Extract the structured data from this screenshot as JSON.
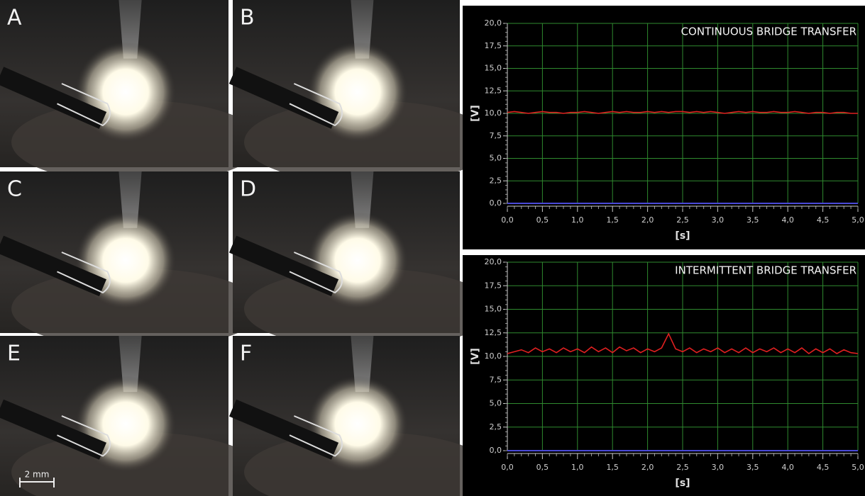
{
  "panels": {
    "labels": [
      "A",
      "B",
      "C",
      "D",
      "E",
      "F"
    ],
    "scale_bar": "2 mm"
  },
  "chart_data": [
    {
      "type": "line",
      "annotation": "CONTINUOUS BRIDGE TRANSFER",
      "xlabel": "[s]",
      "ylabel": "[V]",
      "x": [
        0,
        0.1,
        0.2,
        0.3,
        0.4,
        0.5,
        0.6,
        0.7,
        0.8,
        0.9,
        1,
        1.1,
        1.2,
        1.3,
        1.4,
        1.5,
        1.6,
        1.7,
        1.8,
        1.9,
        2,
        2.1,
        2.2,
        2.3,
        2.4,
        2.5,
        2.6,
        2.7,
        2.8,
        2.9,
        3,
        3.1,
        3.2,
        3.3,
        3.4,
        3.5,
        3.6,
        3.7,
        3.8,
        3.9,
        4,
        4.1,
        4.2,
        4.3,
        4.4,
        4.5,
        4.6,
        4.7,
        4.8,
        4.9,
        5
      ],
      "series": [
        {
          "color": "#e02020",
          "values": [
            10.1,
            10.2,
            10.1,
            10.0,
            10.1,
            10.2,
            10.1,
            10.1,
            10.0,
            10.1,
            10.1,
            10.2,
            10.1,
            10.0,
            10.1,
            10.2,
            10.1,
            10.2,
            10.1,
            10.1,
            10.2,
            10.1,
            10.2,
            10.1,
            10.2,
            10.2,
            10.1,
            10.2,
            10.1,
            10.2,
            10.1,
            10.0,
            10.1,
            10.2,
            10.1,
            10.2,
            10.1,
            10.1,
            10.2,
            10.1,
            10.1,
            10.2,
            10.1,
            10.0,
            10.1,
            10.1,
            10.0,
            10.1,
            10.1,
            10.0,
            10.0
          ]
        }
      ],
      "xlim": [
        0,
        5
      ],
      "ylim": [
        0,
        20
      ],
      "xticks": [
        {
          "value": 0,
          "label": "0,0"
        },
        {
          "value": 0.5,
          "label": "0,5"
        },
        {
          "value": 1,
          "label": "1,0"
        },
        {
          "value": 1.5,
          "label": "1,5"
        },
        {
          "value": 2,
          "label": "2,0"
        },
        {
          "value": 2.5,
          "label": "2,5"
        },
        {
          "value": 3,
          "label": "3,0"
        },
        {
          "value": 3.5,
          "label": "3,5"
        },
        {
          "value": 4,
          "label": "4,0"
        },
        {
          "value": 4.5,
          "label": "4,5"
        },
        {
          "value": 5,
          "label": "5,0"
        }
      ],
      "yticks": [
        {
          "value": 0,
          "label": "0,0"
        },
        {
          "value": 2.5,
          "label": "2,5"
        },
        {
          "value": 5,
          "label": "5,0"
        },
        {
          "value": 7.5,
          "label": "7,5"
        },
        {
          "value": 10,
          "label": "10,0"
        },
        {
          "value": 12.5,
          "label": "12,5"
        },
        {
          "value": 15,
          "label": "15,0"
        },
        {
          "value": 17.5,
          "label": "17,5"
        },
        {
          "value": 20,
          "label": "20,0"
        }
      ],
      "grid": true
    },
    {
      "type": "line",
      "annotation": "INTERMITTENT BRIDGE TRANSFER",
      "xlabel": "[s]",
      "ylabel": "[V]",
      "x": [
        0,
        0.1,
        0.2,
        0.3,
        0.4,
        0.5,
        0.6,
        0.7,
        0.8,
        0.9,
        1,
        1.1,
        1.2,
        1.3,
        1.4,
        1.5,
        1.6,
        1.7,
        1.8,
        1.9,
        2,
        2.1,
        2.2,
        2.3,
        2.4,
        2.5,
        2.6,
        2.7,
        2.8,
        2.9,
        3,
        3.1,
        3.2,
        3.3,
        3.4,
        3.5,
        3.6,
        3.7,
        3.8,
        3.9,
        4,
        4.1,
        4.2,
        4.3,
        4.4,
        4.5,
        4.6,
        4.7,
        4.8,
        4.9,
        5
      ],
      "series": [
        {
          "color": "#e02020",
          "values": [
            10.3,
            10.5,
            10.7,
            10.4,
            10.9,
            10.5,
            10.8,
            10.4,
            10.9,
            10.5,
            10.8,
            10.4,
            11.0,
            10.5,
            10.9,
            10.4,
            11.0,
            10.6,
            10.9,
            10.4,
            10.8,
            10.5,
            10.9,
            12.4,
            10.8,
            10.5,
            10.9,
            10.4,
            10.8,
            10.5,
            10.9,
            10.4,
            10.8,
            10.4,
            10.9,
            10.4,
            10.8,
            10.5,
            10.9,
            10.4,
            10.8,
            10.4,
            10.9,
            10.3,
            10.8,
            10.4,
            10.8,
            10.3,
            10.7,
            10.4,
            10.3
          ]
        }
      ],
      "xlim": [
        0,
        5
      ],
      "ylim": [
        0,
        20
      ],
      "xticks": [
        {
          "value": 0,
          "label": "0,0"
        },
        {
          "value": 0.5,
          "label": "0,5"
        },
        {
          "value": 1,
          "label": "1,0"
        },
        {
          "value": 1.5,
          "label": "1,5"
        },
        {
          "value": 2,
          "label": "2,0"
        },
        {
          "value": 2.5,
          "label": "2,5"
        },
        {
          "value": 3,
          "label": "3,0"
        },
        {
          "value": 3.5,
          "label": "3,5"
        },
        {
          "value": 4,
          "label": "4,0"
        },
        {
          "value": 4.5,
          "label": "4,5"
        },
        {
          "value": 5,
          "label": "5,0"
        }
      ],
      "yticks": [
        {
          "value": 0,
          "label": "0,0"
        },
        {
          "value": 2.5,
          "label": "2,5"
        },
        {
          "value": 5,
          "label": "5,0"
        },
        {
          "value": 7.5,
          "label": "7,5"
        },
        {
          "value": 10,
          "label": "10,0"
        },
        {
          "value": 12.5,
          "label": "12,5"
        },
        {
          "value": 15,
          "label": "15,0"
        },
        {
          "value": 17.5,
          "label": "17,5"
        },
        {
          "value": 20,
          "label": "20,0"
        }
      ],
      "grid": true
    }
  ]
}
